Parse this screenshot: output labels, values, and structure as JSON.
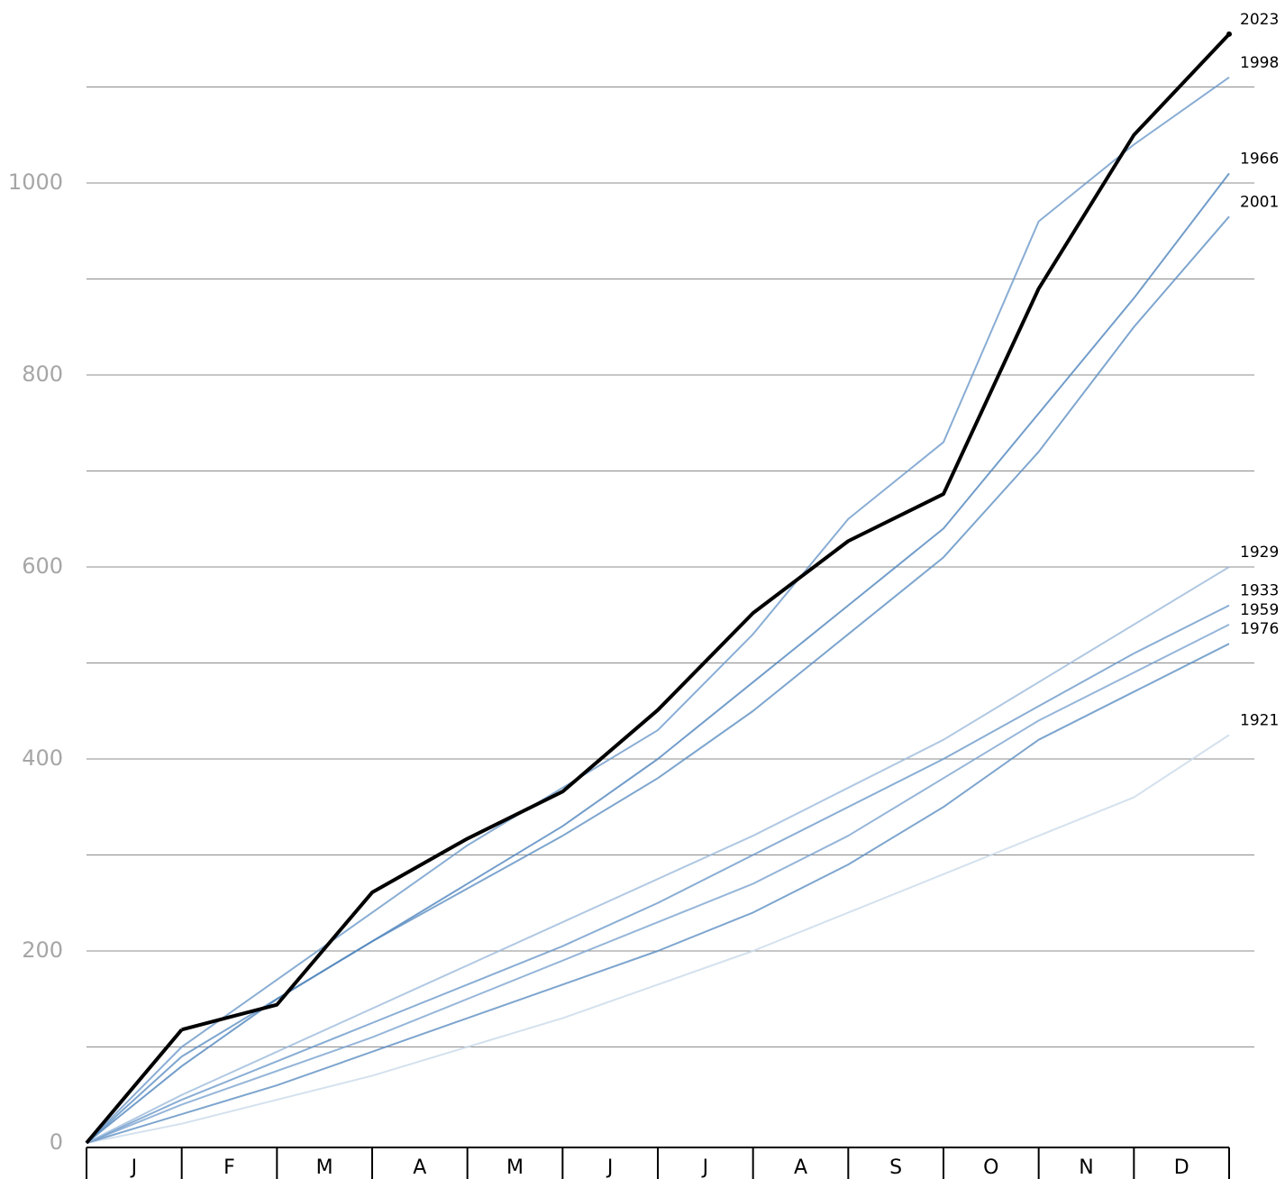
{
  "chart_data": {
    "type": "line",
    "categories": [
      "J",
      "F",
      "M",
      "A",
      "M",
      "J",
      "J",
      "A",
      "S",
      "O",
      "N",
      "D"
    ],
    "ylim": [
      0,
      1190
    ],
    "yticks": [
      0,
      200,
      400,
      600,
      800,
      1000
    ],
    "minor_yticks": [
      100,
      300,
      500,
      700,
      900,
      1100
    ],
    "grid": true,
    "series": [
      {
        "name": "1921",
        "color": "#c9d9ea",
        "values": [
          20,
          45,
          70,
          100,
          130,
          165,
          200,
          240,
          280,
          320,
          360,
          425
        ]
      },
      {
        "name": "1976",
        "color": "#5d8fc2",
        "values": [
          30,
          60,
          95,
          130,
          165,
          200,
          240,
          290,
          350,
          420,
          470,
          520
        ]
      },
      {
        "name": "1959",
        "color": "#7aa3cf",
        "values": [
          40,
          75,
          110,
          150,
          190,
          230,
          270,
          320,
          380,
          440,
          490,
          540
        ]
      },
      {
        "name": "1933",
        "color": "#6b99c9",
        "values": [
          45,
          85,
          125,
          165,
          205,
          250,
          300,
          350,
          400,
          455,
          510,
          560
        ]
      },
      {
        "name": "1929",
        "color": "#9cbadb",
        "values": [
          50,
          95,
          140,
          185,
          230,
          275,
          320,
          370,
          420,
          480,
          540,
          600
        ]
      },
      {
        "name": "2001",
        "color": "#5d8fc2",
        "values": [
          90,
          150,
          210,
          265,
          320,
          380,
          450,
          530,
          610,
          720,
          850,
          965
        ]
      },
      {
        "name": "1966",
        "color": "#4f85bd",
        "values": [
          80,
          150,
          210,
          270,
          330,
          400,
          480,
          560,
          640,
          760,
          880,
          1010
        ]
      },
      {
        "name": "1998",
        "color": "#6b99c9",
        "values": [
          100,
          170,
          240,
          310,
          370,
          430,
          530,
          650,
          730,
          960,
          1040,
          1110
        ]
      },
      {
        "name": "2023",
        "color": "#000000",
        "values": [
          118,
          144,
          261,
          317,
          366,
          451,
          552,
          627,
          676,
          890,
          1050,
          1155
        ]
      }
    ]
  }
}
